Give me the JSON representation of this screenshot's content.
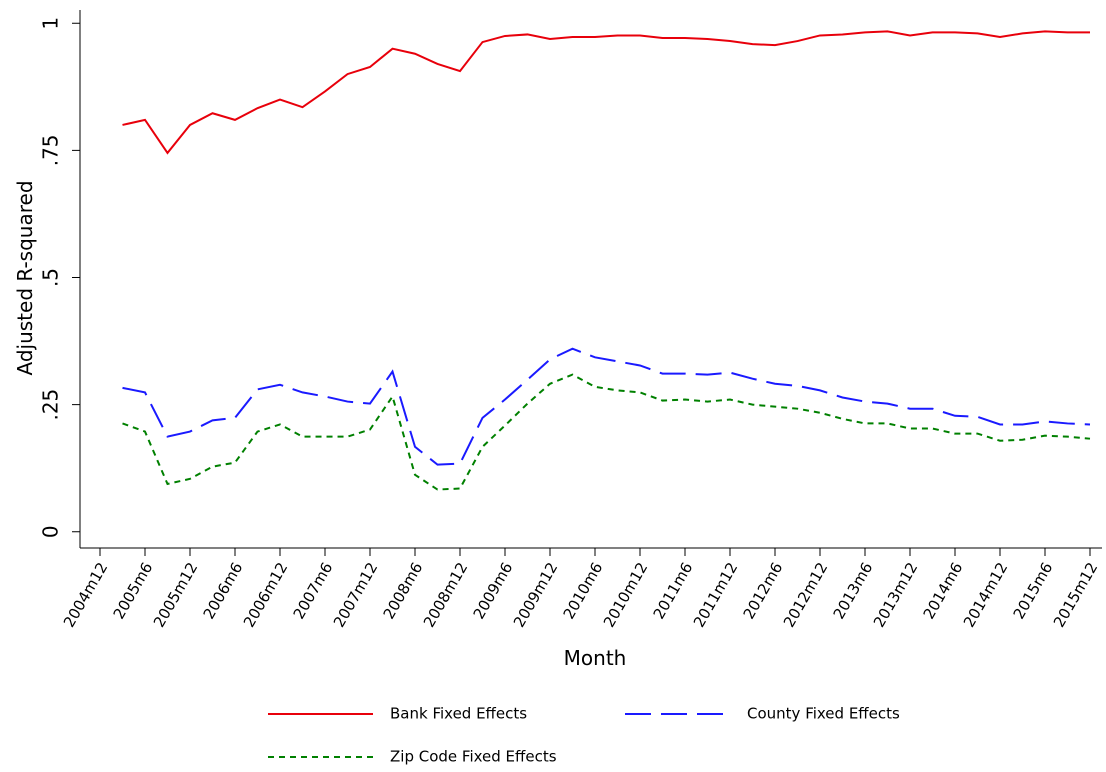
{
  "chart_data": {
    "type": "line",
    "x_label": "Month",
    "y_label": "Adjusted R-squared",
    "categories": [
      "2004m12",
      null,
      "2005m6",
      null,
      "2005m12",
      null,
      "2006m6",
      null,
      "2006m12",
      null,
      "2007m6",
      null,
      "2007m12",
      null,
      "2008m6",
      null,
      "2008m12",
      null,
      "2009m6",
      null,
      "2009m12",
      null,
      "2010m6",
      null,
      "2010m12",
      null,
      "2011m6",
      null,
      "2011m12",
      null,
      "2012m6",
      null,
      "2012m12",
      null,
      "2013m6",
      null,
      "2013m12",
      null,
      "2014m6",
      null,
      "2014m12",
      null,
      "2015m6",
      null,
      "2015m12"
    ],
    "series": [
      {
        "name": "Bank Fixed Effects",
        "color": "#e8000b",
        "style": "solid",
        "values": [
          null,
          0.8,
          0.81,
          0.745,
          0.8,
          0.823,
          0.81,
          0.833,
          0.85,
          0.835,
          0.866,
          0.9,
          0.914,
          0.95,
          0.94,
          0.92,
          0.906,
          0.963,
          0.975,
          0.978,
          0.969,
          0.973,
          0.973,
          0.976,
          0.976,
          0.971,
          0.971,
          0.969,
          0.965,
          0.959,
          0.957,
          0.965,
          0.976,
          0.978,
          0.982,
          0.984,
          0.976,
          0.982,
          0.982,
          0.98,
          0.973,
          0.98,
          0.984,
          0.982,
          0.982
        ]
      },
      {
        "name": "County Fixed Effects",
        "color": "#1a1aff",
        "style": "long-dash",
        "values": [
          null,
          0.283,
          0.274,
          0.187,
          0.197,
          0.219,
          0.224,
          0.28,
          0.289,
          0.274,
          0.266,
          0.256,
          0.252,
          0.315,
          0.167,
          0.132,
          0.134,
          0.224,
          0.26,
          0.299,
          0.339,
          0.36,
          0.343,
          0.335,
          0.327,
          0.311,
          0.311,
          0.309,
          0.313,
          0.301,
          0.291,
          0.287,
          0.278,
          0.264,
          0.256,
          0.252,
          0.242,
          0.242,
          0.228,
          0.226,
          0.211,
          0.211,
          0.217,
          0.213,
          0.211
        ]
      },
      {
        "name": "Zip Code Fixed Effects",
        "color": "#008000",
        "style": "short-dash",
        "values": [
          null,
          0.213,
          0.197,
          0.094,
          0.104,
          0.128,
          0.136,
          0.197,
          0.211,
          0.187,
          0.187,
          0.187,
          0.201,
          0.266,
          0.112,
          0.083,
          0.085,
          0.167,
          0.209,
          0.252,
          0.291,
          0.309,
          0.285,
          0.278,
          0.274,
          0.258,
          0.26,
          0.256,
          0.26,
          0.25,
          0.246,
          0.242,
          0.234,
          0.222,
          0.213,
          0.213,
          0.203,
          0.203,
          0.193,
          0.193,
          0.179,
          0.181,
          0.189,
          0.187,
          0.183
        ]
      }
    ],
    "ylim": [
      -0.03,
      1.03
    ],
    "yticks": [
      0,
      {
        "value": 0.25,
        "label": ".25"
      },
      {
        "value": 0.5,
        "label": ".5"
      },
      {
        "value": 0.75,
        "label": ".75"
      },
      1
    ]
  }
}
